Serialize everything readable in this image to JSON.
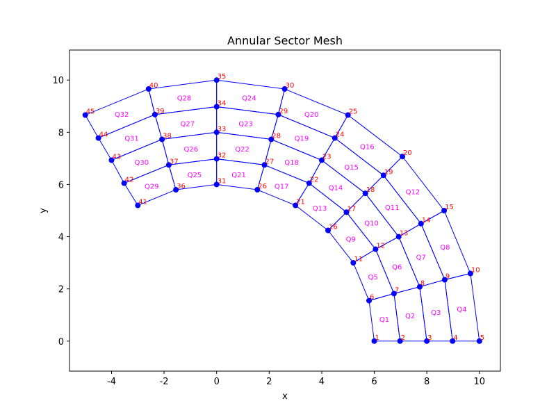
{
  "chart_data": {
    "type": "mesh",
    "title": "Annular Sector Mesh",
    "xlabel": "x",
    "ylabel": "y",
    "xlim": [
      -5.6,
      10.8
    ],
    "ylim": [
      -1.15,
      11.15
    ],
    "xticks": [
      -4,
      -2,
      0,
      2,
      4,
      6,
      8,
      10
    ],
    "yticks": [
      0,
      2,
      4,
      6,
      8,
      10
    ],
    "grid": false,
    "colors": {
      "edges": "#0000ff",
      "nodes": "#0000ff",
      "node_labels": "#ff0000",
      "element_labels": "#ff00ff"
    },
    "inner_radius": 6,
    "outer_radius": 10,
    "start_angle_deg": 0,
    "end_angle_deg": 120,
    "radial_divisions": 4,
    "angular_divisions": 8,
    "nodes": [
      {
        "id": "1",
        "x": 6.0,
        "y": 0.0
      },
      {
        "id": "2",
        "x": 6.98,
        "y": 0.0
      },
      {
        "id": "3",
        "x": 8.0,
        "y": 0.0
      },
      {
        "id": "4",
        "x": 8.98,
        "y": 0.0
      },
      {
        "id": "5",
        "x": 10.0,
        "y": 0.0
      },
      {
        "id": "6",
        "x": 5.8,
        "y": 1.55
      },
      {
        "id": "7",
        "x": 6.75,
        "y": 1.82
      },
      {
        "id": "8",
        "x": 7.73,
        "y": 2.08
      },
      {
        "id": "9",
        "x": 8.68,
        "y": 2.35
      },
      {
        "id": "10",
        "x": 9.66,
        "y": 2.59
      },
      {
        "id": "11",
        "x": 5.2,
        "y": 3.0
      },
      {
        "id": "12",
        "x": 6.05,
        "y": 3.52
      },
      {
        "id": "13",
        "x": 6.93,
        "y": 4.0
      },
      {
        "id": "14",
        "x": 7.78,
        "y": 4.5
      },
      {
        "id": "15",
        "x": 8.66,
        "y": 5.0
      },
      {
        "id": "16",
        "x": 4.24,
        "y": 4.24
      },
      {
        "id": "17",
        "x": 4.94,
        "y": 4.94
      },
      {
        "id": "18",
        "x": 5.66,
        "y": 5.66
      },
      {
        "id": "19",
        "x": 6.35,
        "y": 6.35
      },
      {
        "id": "20",
        "x": 7.07,
        "y": 7.07
      },
      {
        "id": "21",
        "x": 3.0,
        "y": 5.2
      },
      {
        "id": "22",
        "x": 3.52,
        "y": 6.05
      },
      {
        "id": "23",
        "x": 4.0,
        "y": 6.93
      },
      {
        "id": "24",
        "x": 4.5,
        "y": 7.78
      },
      {
        "id": "25",
        "x": 5.0,
        "y": 8.66
      },
      {
        "id": "26",
        "x": 1.55,
        "y": 5.8
      },
      {
        "id": "27",
        "x": 1.82,
        "y": 6.75
      },
      {
        "id": "28",
        "x": 2.08,
        "y": 7.73
      },
      {
        "id": "29",
        "x": 2.35,
        "y": 8.68
      },
      {
        "id": "30",
        "x": 2.59,
        "y": 9.66
      },
      {
        "id": "31",
        "x": 0.0,
        "y": 6.0
      },
      {
        "id": "32",
        "x": 0.0,
        "y": 6.98
      },
      {
        "id": "33",
        "x": 0.0,
        "y": 8.0
      },
      {
        "id": "34",
        "x": 0.0,
        "y": 8.98
      },
      {
        "id": "35",
        "x": 0.0,
        "y": 10.0
      },
      {
        "id": "36",
        "x": -1.55,
        "y": 5.8
      },
      {
        "id": "37",
        "x": -1.82,
        "y": 6.75
      },
      {
        "id": "38",
        "x": -2.08,
        "y": 7.73
      },
      {
        "id": "39",
        "x": -2.35,
        "y": 8.68
      },
      {
        "id": "40",
        "x": -2.59,
        "y": 9.66
      },
      {
        "id": "41",
        "x": -3.0,
        "y": 5.2
      },
      {
        "id": "42",
        "x": -3.52,
        "y": 6.05
      },
      {
        "id": "43",
        "x": -4.0,
        "y": 6.93
      },
      {
        "id": "44",
        "x": -4.5,
        "y": 7.78
      },
      {
        "id": "45",
        "x": -5.0,
        "y": 8.66
      }
    ],
    "elements": [
      {
        "id": "Q1",
        "nodes": [
          "1",
          "2",
          "7",
          "6"
        ]
      },
      {
        "id": "Q2",
        "nodes": [
          "2",
          "3",
          "8",
          "7"
        ]
      },
      {
        "id": "Q3",
        "nodes": [
          "3",
          "4",
          "9",
          "8"
        ]
      },
      {
        "id": "Q4",
        "nodes": [
          "4",
          "5",
          "10",
          "9"
        ]
      },
      {
        "id": "Q5",
        "nodes": [
          "6",
          "7",
          "12",
          "11"
        ]
      },
      {
        "id": "Q6",
        "nodes": [
          "7",
          "8",
          "13",
          "12"
        ]
      },
      {
        "id": "Q7",
        "nodes": [
          "8",
          "9",
          "14",
          "13"
        ]
      },
      {
        "id": "Q8",
        "nodes": [
          "9",
          "10",
          "15",
          "14"
        ]
      },
      {
        "id": "Q9",
        "nodes": [
          "11",
          "12",
          "17",
          "16"
        ]
      },
      {
        "id": "Q10",
        "nodes": [
          "12",
          "13",
          "18",
          "17"
        ]
      },
      {
        "id": "Q11",
        "nodes": [
          "13",
          "14",
          "19",
          "18"
        ]
      },
      {
        "id": "Q12",
        "nodes": [
          "14",
          "15",
          "20",
          "19"
        ]
      },
      {
        "id": "Q13",
        "nodes": [
          "16",
          "17",
          "22",
          "21"
        ]
      },
      {
        "id": "Q14",
        "nodes": [
          "17",
          "18",
          "23",
          "22"
        ]
      },
      {
        "id": "Q15",
        "nodes": [
          "18",
          "19",
          "24",
          "23"
        ]
      },
      {
        "id": "Q16",
        "nodes": [
          "19",
          "20",
          "25",
          "24"
        ]
      },
      {
        "id": "Q17",
        "nodes": [
          "21",
          "22",
          "27",
          "26"
        ]
      },
      {
        "id": "Q18",
        "nodes": [
          "22",
          "23",
          "28",
          "27"
        ]
      },
      {
        "id": "Q19",
        "nodes": [
          "23",
          "24",
          "29",
          "28"
        ]
      },
      {
        "id": "Q20",
        "nodes": [
          "24",
          "25",
          "30",
          "29"
        ]
      },
      {
        "id": "Q21",
        "nodes": [
          "26",
          "27",
          "32",
          "31"
        ]
      },
      {
        "id": "Q22",
        "nodes": [
          "27",
          "28",
          "33",
          "32"
        ]
      },
      {
        "id": "Q23",
        "nodes": [
          "28",
          "29",
          "34",
          "33"
        ]
      },
      {
        "id": "Q24",
        "nodes": [
          "29",
          "30",
          "35",
          "34"
        ]
      },
      {
        "id": "Q25",
        "nodes": [
          "31",
          "32",
          "37",
          "36"
        ]
      },
      {
        "id": "Q26",
        "nodes": [
          "32",
          "33",
          "38",
          "37"
        ]
      },
      {
        "id": "Q27",
        "nodes": [
          "33",
          "34",
          "39",
          "38"
        ]
      },
      {
        "id": "Q28",
        "nodes": [
          "34",
          "35",
          "40",
          "39"
        ]
      },
      {
        "id": "Q29",
        "nodes": [
          "36",
          "37",
          "42",
          "41"
        ]
      },
      {
        "id": "Q30",
        "nodes": [
          "37",
          "38",
          "43",
          "42"
        ]
      },
      {
        "id": "Q31",
        "nodes": [
          "38",
          "39",
          "44",
          "43"
        ]
      },
      {
        "id": "Q32",
        "nodes": [
          "39",
          "40",
          "45",
          "44"
        ]
      }
    ]
  }
}
